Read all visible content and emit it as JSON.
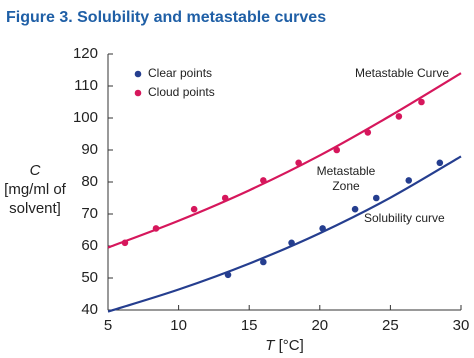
{
  "chart_data": {
    "type": "scatter",
    "title": "Figure 3. Solubility and metastable curves",
    "ylabel": [
      "C",
      "[mg/ml of",
      "solvent]"
    ],
    "xlabel": [
      "T",
      " [°C]"
    ],
    "xlim": [
      5,
      30
    ],
    "xticks": [
      5,
      10,
      15,
      20,
      25,
      30
    ],
    "ylim": [
      40,
      120
    ],
    "yticks": [
      40,
      50,
      60,
      70,
      80,
      90,
      100,
      110,
      120
    ],
    "grid": false,
    "legend": "top-left",
    "series": [
      {
        "name": "Clear points",
        "color": "#253e8f",
        "x": [
          13.5,
          16,
          18,
          20.2,
          22.5,
          24,
          26.3,
          28.5
        ],
        "values": [
          51,
          55,
          61,
          65.5,
          71.5,
          75,
          80.5,
          86
        ]
      },
      {
        "name": "Cloud points",
        "color": "#d6175c",
        "x": [
          6.2,
          8.4,
          11.1,
          13.3,
          16,
          18.5,
          21.2,
          23.4,
          25.6,
          27.2
        ],
        "values": [
          61,
          65.5,
          71.5,
          75,
          80.5,
          86,
          90,
          95.5,
          100.5,
          105
        ]
      }
    ],
    "curves": [
      {
        "label": "Solubility curve",
        "color": "#253e8f",
        "x": [
          5,
          10,
          15,
          20,
          25,
          30
        ],
        "values": [
          39.5,
          46.4,
          54.5,
          64.0,
          75.1,
          88
        ]
      },
      {
        "label": "Metastable Curve",
        "color": "#d6175c",
        "x": [
          5,
          10,
          15,
          20,
          25,
          30
        ],
        "values": [
          59.5,
          67.9,
          77.4,
          88.3,
          100.7,
          114
        ]
      }
    ],
    "annotations": [
      "Metastable",
      "Zone"
    ]
  }
}
